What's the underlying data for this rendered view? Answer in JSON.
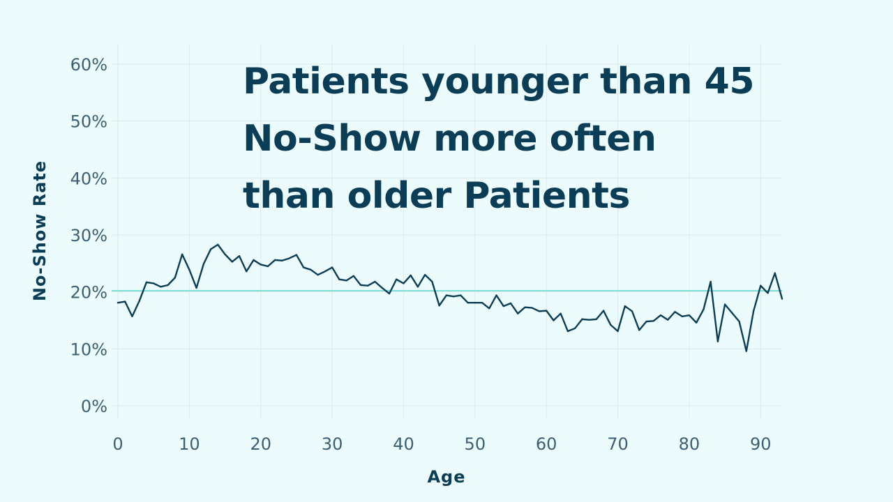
{
  "headline": {
    "line1": "Patients younger than 45",
    "line2": "No-Show more often",
    "line3": "than older Patients"
  },
  "colors": {
    "background": "#ecfcfd",
    "line": "#0b3d57",
    "reference_line": "#7fe0d6",
    "grid": "#dde9ec",
    "tick_text": "#3d5f73",
    "title_text": "#0b3d57"
  },
  "chart_data": {
    "type": "line",
    "title": "Patients younger than 45 No-Show more often than older Patients",
    "xlabel": "Age",
    "ylabel": "No-Show Rate",
    "xlim": [
      0,
      93
    ],
    "ylim": [
      0,
      0.6
    ],
    "x_ticks": [
      0,
      10,
      20,
      30,
      40,
      50,
      60,
      70,
      80,
      90
    ],
    "x_tick_labels": [
      "0",
      "10",
      "20",
      "30",
      "40",
      "50",
      "60",
      "70",
      "80",
      "90"
    ],
    "y_ticks": [
      0,
      0.1,
      0.2,
      0.3,
      0.4,
      0.5,
      0.6
    ],
    "y_tick_labels": [
      "0%",
      "10%",
      "20%",
      "30%",
      "40%",
      "50%",
      "60%"
    ],
    "grid": true,
    "reference_line": {
      "y": 0.202
    },
    "series": [
      {
        "x": [
          0,
          1,
          2,
          3,
          4,
          5,
          6,
          7,
          8,
          9,
          10,
          11,
          12,
          13,
          14,
          15,
          16,
          17,
          18,
          19,
          20,
          21,
          22,
          23,
          24,
          25,
          26,
          27,
          28,
          29,
          30,
          31,
          32,
          33,
          34,
          35,
          36,
          37,
          38,
          39,
          40,
          41,
          42,
          43,
          44,
          45,
          46,
          47,
          48,
          49,
          50,
          51,
          52,
          53,
          54,
          55,
          56,
          57,
          58,
          59,
          60,
          61,
          62,
          63,
          64,
          65,
          66,
          67,
          68,
          69,
          70,
          71,
          72,
          73,
          74,
          75,
          76,
          77,
          78,
          79,
          80,
          81,
          82,
          83,
          84,
          85,
          86,
          87,
          88,
          89,
          90,
          91,
          92,
          93
        ],
        "values": [
          0.181,
          0.183,
          0.157,
          0.184,
          0.217,
          0.215,
          0.209,
          0.212,
          0.225,
          0.266,
          0.239,
          0.207,
          0.249,
          0.275,
          0.283,
          0.266,
          0.253,
          0.263,
          0.236,
          0.256,
          0.248,
          0.245,
          0.256,
          0.255,
          0.259,
          0.265,
          0.243,
          0.239,
          0.23,
          0.236,
          0.243,
          0.222,
          0.22,
          0.228,
          0.212,
          0.211,
          0.218,
          0.207,
          0.197,
          0.222,
          0.215,
          0.229,
          0.209,
          0.23,
          0.218,
          0.176,
          0.194,
          0.192,
          0.194,
          0.181,
          0.181,
          0.181,
          0.171,
          0.194,
          0.175,
          0.18,
          0.162,
          0.173,
          0.172,
          0.166,
          0.167,
          0.15,
          0.162,
          0.131,
          0.136,
          0.152,
          0.151,
          0.152,
          0.167,
          0.142,
          0.131,
          0.175,
          0.166,
          0.133,
          0.148,
          0.149,
          0.159,
          0.151,
          0.165,
          0.157,
          0.159,
          0.146,
          0.169,
          0.218,
          0.113,
          0.178,
          0.163,
          0.148,
          0.096,
          0.166,
          0.211,
          0.198,
          0.233,
          0.188
        ]
      }
    ]
  }
}
